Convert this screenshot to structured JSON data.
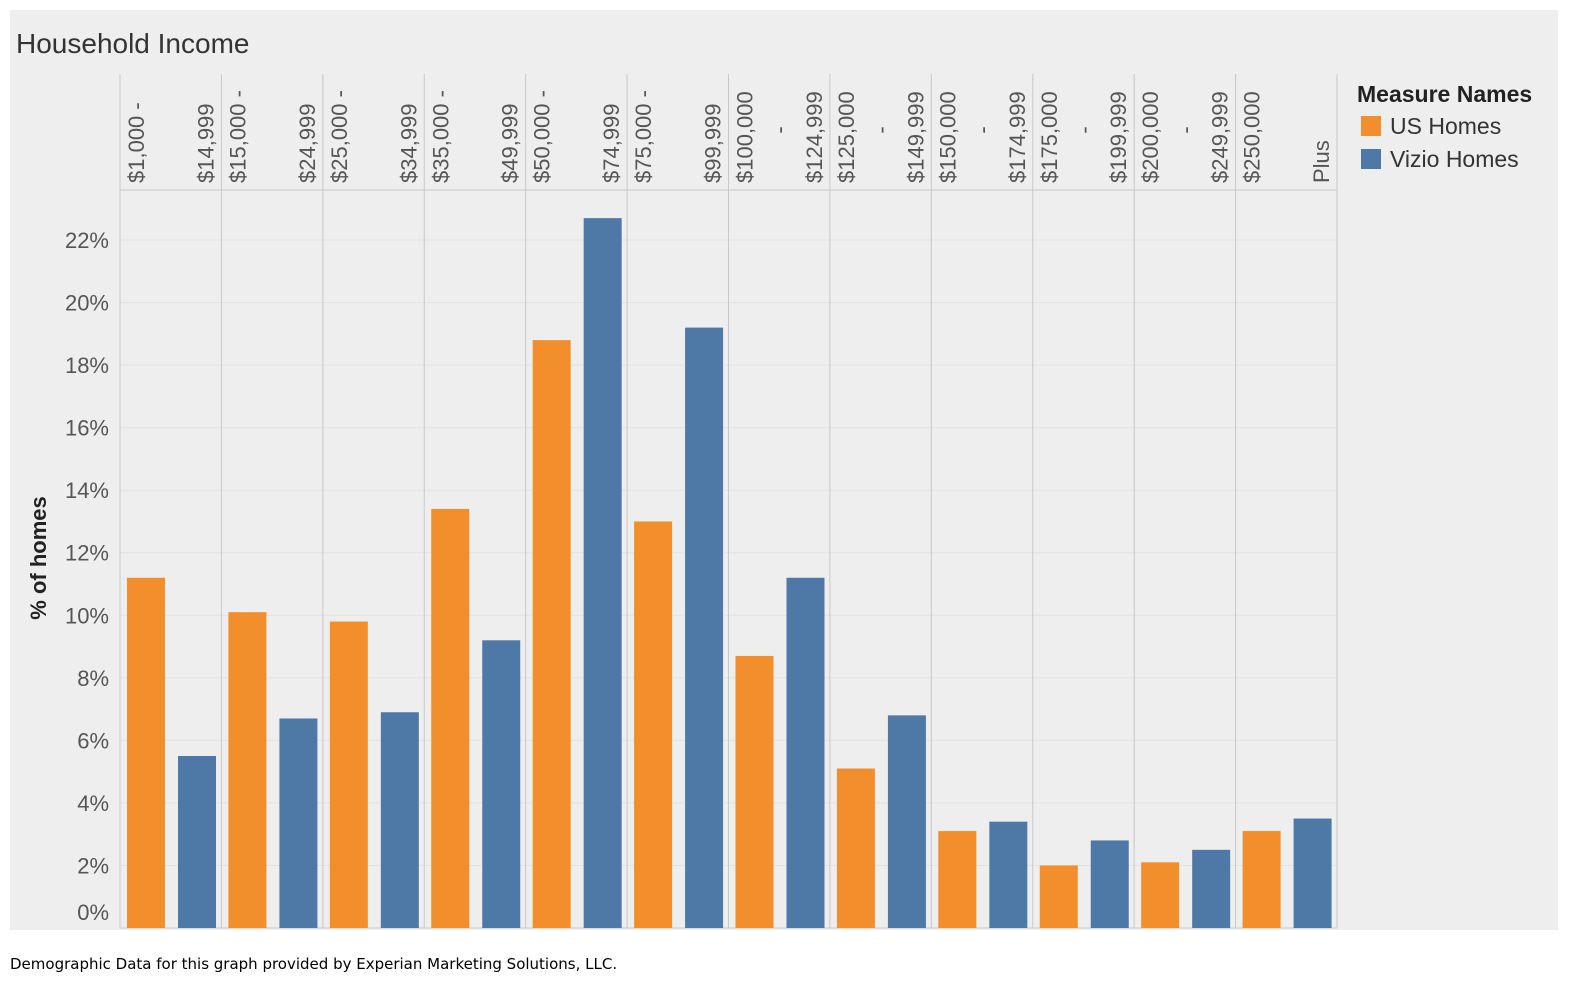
{
  "chart_data": {
    "type": "bar",
    "title": "Household Income",
    "ylabel": "% of homes",
    "xlabel": "",
    "ylim": [
      0,
      0.236
    ],
    "yticks": [
      0,
      0.02,
      0.04,
      0.06,
      0.08,
      0.1,
      0.12,
      0.14,
      0.16,
      0.18,
      0.2,
      0.22
    ],
    "ytick_labels": [
      "0%",
      "2%",
      "4%",
      "6%",
      "8%",
      "10%",
      "12%",
      "14%",
      "16%",
      "18%",
      "20%",
      "22%"
    ],
    "categories": [
      "$1,000 - $14,999",
      "$15,000 - $24,999",
      "$25,000 - $34,999",
      "$35,000 - $49,999",
      "$50,000 - $74,999",
      "$75,000 - $99,999",
      "$100,000 - $124,999",
      "$125,000 - $149,999",
      "$150,000 - $174,999",
      "$175,000 - $199,999",
      "$200,000 - $249,999",
      "$250,000 Plus"
    ],
    "category_label_lines": [
      [
        "$1,000 -",
        "$14,999"
      ],
      [
        "$15,000 -",
        "$24,999"
      ],
      [
        "$25,000 -",
        "$34,999"
      ],
      [
        "$35,000 -",
        "$49,999"
      ],
      [
        "$50,000 -",
        "$74,999"
      ],
      [
        "$75,000 -",
        "$99,999"
      ],
      [
        "$100,000",
        "-",
        "$124,999"
      ],
      [
        "$125,000",
        "-",
        "$149,999"
      ],
      [
        "$150,000",
        "-",
        "$174,999"
      ],
      [
        "$175,000",
        "-",
        "$199,999"
      ],
      [
        "$200,000",
        "-",
        "$249,999"
      ],
      [
        "$250,000",
        "Plus"
      ]
    ],
    "series": [
      {
        "name": "US Homes",
        "color": "#F28E2B",
        "values": [
          0.112,
          0.101,
          0.098,
          0.134,
          0.188,
          0.13,
          0.087,
          0.051,
          0.031,
          0.02,
          0.021,
          0.031
        ]
      },
      {
        "name": "Vizio Homes",
        "color": "#4E79A7",
        "values": [
          0.055,
          0.067,
          0.069,
          0.092,
          0.227,
          0.192,
          0.112,
          0.068,
          0.034,
          0.028,
          0.025,
          0.035
        ]
      }
    ],
    "legend": {
      "title": "Measure Names",
      "position": "right"
    },
    "grid": true
  },
  "footer": "Demographic Data for this graph provided by Experian Marketing Solutions, LLC."
}
